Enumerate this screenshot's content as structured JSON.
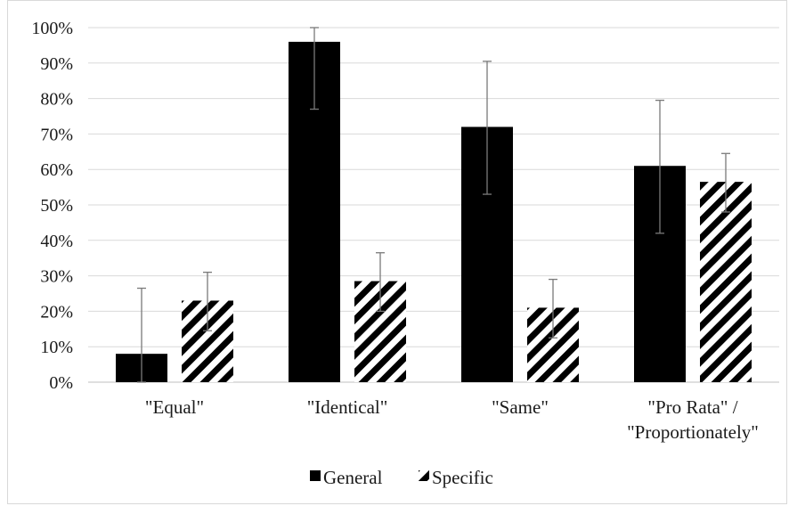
{
  "chart_data": {
    "type": "bar",
    "categories": [
      [
        "\"Equal\""
      ],
      [
        "\"Identical\""
      ],
      [
        "\"Same\""
      ],
      [
        "\"Pro Rata\" /",
        "\"Proportionately\""
      ]
    ],
    "series": [
      {
        "name": "General",
        "color": "#000000",
        "pattern": "solid",
        "values": [
          8,
          96,
          72,
          61
        ],
        "error_low": [
          0,
          77,
          53,
          42
        ],
        "error_high": [
          26.5,
          100,
          90.5,
          79.5
        ]
      },
      {
        "name": "Specific",
        "color": "#000000",
        "pattern": "diagonal-stripes",
        "values": [
          23,
          28.5,
          21,
          56.5
        ],
        "error_low": [
          14.5,
          20,
          12.5,
          48
        ],
        "error_high": [
          31,
          36.5,
          29,
          64.5
        ]
      }
    ],
    "ylim": [
      0,
      100
    ],
    "yticks": [
      "0%",
      "10%",
      "20%",
      "30%",
      "40%",
      "50%",
      "60%",
      "70%",
      "80%",
      "90%",
      "100%"
    ],
    "grid": true,
    "legend_position": "bottom-center",
    "title": "",
    "xlabel": "",
    "ylabel": ""
  }
}
